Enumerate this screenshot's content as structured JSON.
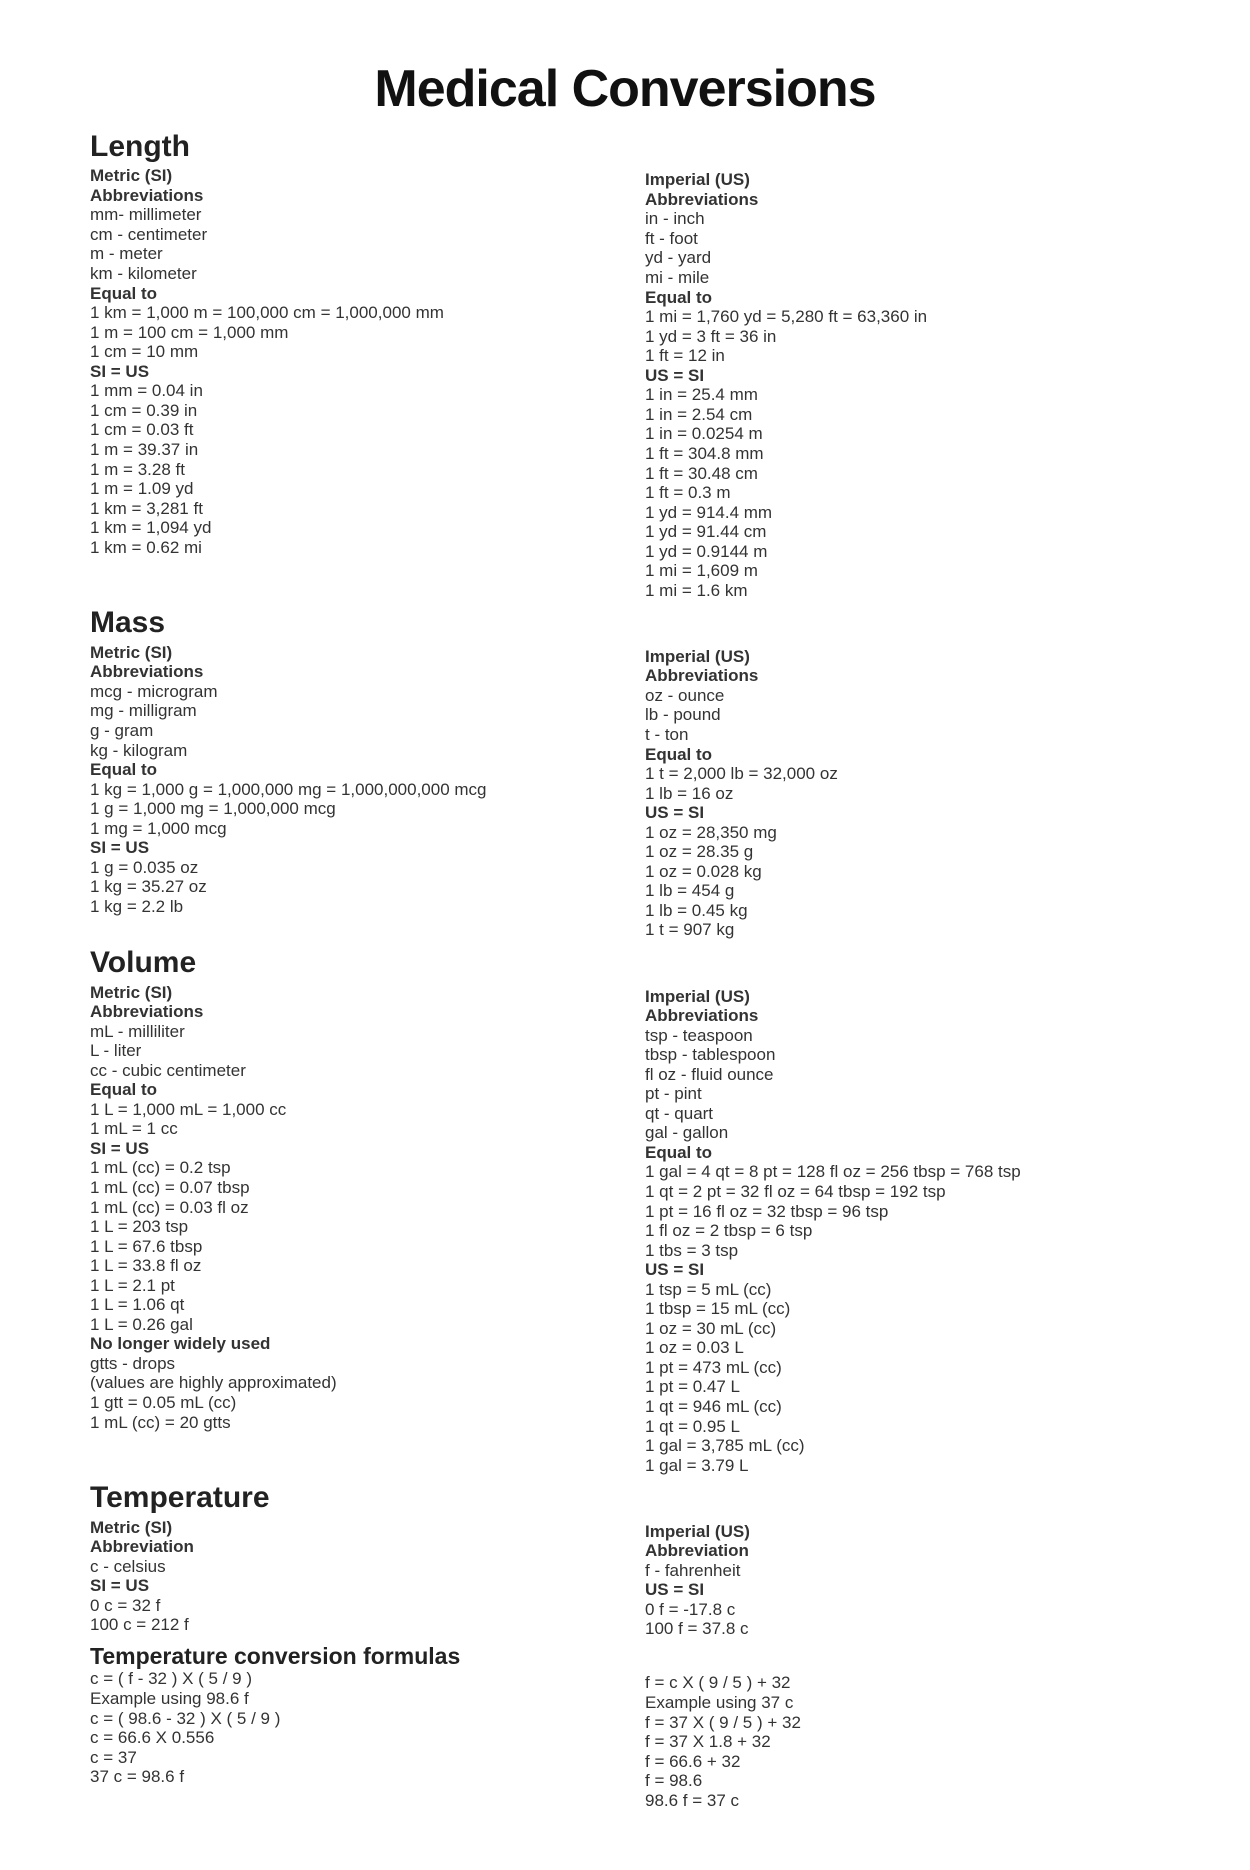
{
  "title": "Medical Conversions",
  "sections": {
    "length": {
      "title": "Length",
      "left": {
        "system": "Metric (SI)",
        "abbr_label": "Abbreviations",
        "abbrs": [
          "mm- millimeter",
          "cm - centimeter",
          "m - meter",
          "km - kilometer"
        ],
        "equal_label": "Equal to",
        "equals": [
          "1 km = 1,000 m = 100,000 cm = 1,000,000 mm",
          "1 m = 100 cm = 1,000 mm",
          "1 cm = 10 mm"
        ],
        "conv_label": "SI = US",
        "convs": [
          "1 mm = 0.04 in",
          "1 cm = 0.39 in",
          "1 cm = 0.03 ft",
          "1 m = 39.37 in",
          "1 m = 3.28 ft",
          "1 m = 1.09 yd",
          "1 km = 3,281 ft",
          "1 km = 1,094 yd",
          "1 km = 0.62 mi"
        ]
      },
      "right": {
        "system": "Imperial (US)",
        "abbr_label": "Abbreviations",
        "abbrs": [
          "in - inch",
          "ft - foot",
          "yd - yard",
          "mi - mile"
        ],
        "equal_label": "Equal to",
        "equals": [
          "1 mi = 1,760 yd = 5,280 ft = 63,360 in",
          "1 yd = 3 ft = 36 in",
          "1 ft = 12 in"
        ],
        "conv_label": "US = SI",
        "convs": [
          "1 in = 25.4 mm",
          "1 in = 2.54 cm",
          "1 in = 0.0254 m",
          "1 ft = 304.8 mm",
          "1 ft = 30.48 cm",
          "1 ft = 0.3 m",
          "1 yd = 914.4 mm",
          "1 yd = 91.44 cm",
          "1 yd = 0.9144 m",
          "1 mi = 1,609 m",
          "1 mi = 1.6 km"
        ]
      }
    },
    "mass": {
      "title": "Mass",
      "left": {
        "system": "Metric (SI)",
        "abbr_label": "Abbreviations",
        "abbrs": [
          "mcg - microgram",
          "mg - milligram",
          "g - gram",
          "kg - kilogram"
        ],
        "equal_label": "Equal to",
        "equals": [
          "1 kg = 1,000 g = 1,000,000 mg = 1,000,000,000 mcg",
          "1 g = 1,000 mg = 1,000,000 mcg",
          "1 mg = 1,000 mcg"
        ],
        "conv_label": "SI = US",
        "convs": [
          "1 g = 0.035 oz",
          "1 kg = 35.27 oz",
          "1 kg = 2.2 lb"
        ]
      },
      "right": {
        "system": "Imperial (US)",
        "abbr_label": "Abbreviations",
        "abbrs": [
          "oz - ounce",
          "lb - pound",
          "t - ton"
        ],
        "equal_label": "Equal to",
        "equals": [
          "1 t = 2,000 lb = 32,000 oz",
          "1 lb = 16 oz"
        ],
        "conv_label": "US = SI",
        "convs": [
          "1 oz = 28,350 mg",
          "1 oz = 28.35 g",
          "1 oz = 0.028 kg",
          "1 lb = 454 g",
          "1 lb = 0.45 kg",
          "1 t = 907 kg"
        ]
      }
    },
    "volume": {
      "title": "Volume",
      "left": {
        "system": "Metric (SI)",
        "abbr_label": "Abbreviations",
        "abbrs": [
          "mL - milliliter",
          "L - liter",
          "cc - cubic centimeter"
        ],
        "equal_label": "Equal to",
        "equals": [
          "1 L = 1,000 mL = 1,000 cc",
          "1 mL = 1 cc"
        ],
        "conv_label": "SI = US",
        "convs": [
          "1 mL (cc) = 0.2 tsp",
          "1 mL (cc) = 0.07 tbsp",
          "1 mL (cc) = 0.03 fl oz",
          "1 L = 203 tsp",
          "1 L = 67.6 tbsp",
          "1 L = 33.8 fl oz",
          "1 L = 2.1 pt",
          "1 L = 1.06 qt",
          "1 L = 0.26 gal"
        ],
        "extra_label": "No longer widely used",
        "extras": [
          "gtts - drops",
          "(values are highly approximated)",
          "1 gtt = 0.05 mL (cc)",
          "1 mL (cc) = 20 gtts"
        ]
      },
      "right": {
        "system": "Imperial (US)",
        "abbr_label": "Abbreviations",
        "abbrs": [
          "tsp - teaspoon",
          "tbsp - tablespoon",
          "fl oz - fluid ounce",
          "pt - pint",
          "qt - quart",
          "gal - gallon"
        ],
        "equal_label": "Equal to",
        "equals": [
          "1 gal = 4 qt = 8 pt = 128 fl oz = 256 tbsp = 768 tsp",
          "1 qt = 2 pt = 32 fl oz = 64 tbsp = 192 tsp",
          "1 pt = 16 fl oz = 32 tbsp = 96 tsp",
          "1 fl oz = 2 tbsp = 6 tsp",
          "1 tbs = 3 tsp"
        ],
        "conv_label": "US = SI",
        "convs": [
          "1 tsp = 5 mL (cc)",
          "1 tbsp = 15 mL (cc)",
          "1 oz = 30 mL (cc)",
          "1 oz = 0.03 L",
          "1 pt = 473 mL (cc)",
          "1 pt = 0.47 L",
          "1 qt = 946 mL (cc)",
          "1 qt = 0.95 L",
          "1 gal = 3,785 mL (cc)",
          "1 gal = 3.79 L"
        ]
      }
    },
    "temperature": {
      "title": "Temperature",
      "left": {
        "system": "Metric (SI)",
        "abbr_label": "Abbreviation",
        "abbrs": [
          "c - celsius"
        ],
        "conv_label": "SI = US",
        "convs": [
          "0 c = 32 f",
          "100 c = 212 f"
        ]
      },
      "right": {
        "system": "Imperial (US)",
        "abbr_label": "Abbreviation",
        "abbrs": [
          "f - fahrenheit"
        ],
        "conv_label": "US = SI",
        "convs": [
          "0 f = -17.8 c",
          "100 f = 37.8 c"
        ]
      },
      "formulas_title": "Temperature conversion formulas",
      "formula_left": [
        "c = ( f - 32 ) X ( 5 / 9 )",
        "Example using 98.6 f",
        "c = ( 98.6 - 32 ) X ( 5 / 9 )",
        "c = 66.6 X 0.556",
        "c = 37",
        "37 c = 98.6 f"
      ],
      "formula_right": [
        "f = c X ( 9 / 5 ) + 32",
        "Example using 37 c",
        "f = 37 X ( 9 / 5 ) + 32",
        "f = 37 X 1.8 + 32",
        "f = 66.6 + 32",
        "f = 98.6",
        "98.6 f = 37 c"
      ]
    }
  }
}
